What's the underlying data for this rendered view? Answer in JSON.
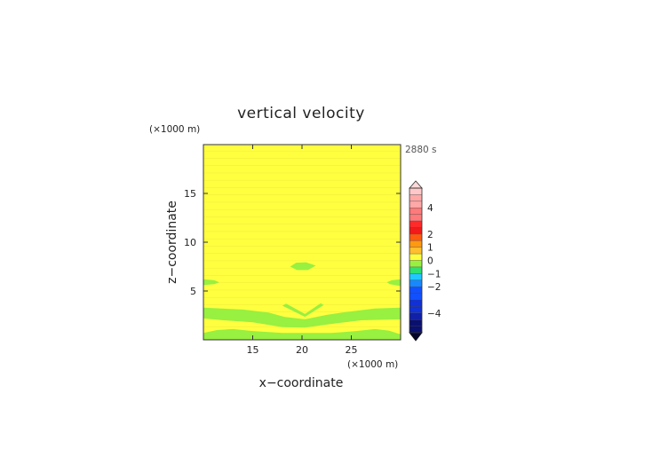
{
  "chart_data": {
    "type": "heatmap",
    "title": "vertical velocity",
    "time_label": "2880 s",
    "xlabel": "x−coordinate",
    "ylabel": "z−coordinate",
    "x_unit": "(×1000 m)",
    "y_unit": "(×1000 m)",
    "xlim": [
      10,
      30
    ],
    "ylim": [
      0,
      20
    ],
    "x_ticks": [
      15,
      20,
      25
    ],
    "y_ticks": [
      5,
      10,
      15
    ],
    "x_tick_labels": [
      "15",
      "20",
      "25"
    ],
    "y_tick_labels": [
      "5",
      "10",
      "15"
    ],
    "background_level": "0 to 0.5 (yellow)",
    "features": [
      {
        "name": "upper-patch",
        "level": "-0.5 to 0",
        "x_range": [
          18.8,
          21.4
        ],
        "z": 7.5
      },
      {
        "name": "left-edge-lobe",
        "level": "-0.5 to 0",
        "x_range": [
          10,
          11.6
        ],
        "z": 5.9
      },
      {
        "name": "right-edge-lobe",
        "level": "-0.5 to 0",
        "x_range": [
          28.6,
          30
        ],
        "z": 5.9
      },
      {
        "name": "central-chevron",
        "level": "-0.5 to 0",
        "x_range": [
          18,
          22.2
        ],
        "z": 3.3
      },
      {
        "name": "low-band",
        "level": "-0.5 to 0",
        "z_range": [
          2.0,
          3.3
        ]
      },
      {
        "name": "near-surface-band",
        "level": "-0.5 to 0",
        "z_range": [
          0,
          1.0
        ]
      }
    ],
    "colorbar": {
      "tick_labels": [
        "4",
        "2",
        "1",
        "0",
        "−1",
        "−2",
        "−4"
      ],
      "levels": [
        {
          "from": 5,
          "to": 5.5,
          "color": "#ffc8c8"
        },
        {
          "from": 4,
          "to": 5,
          "color": "#ffa8a8"
        },
        {
          "from": 3,
          "to": 4,
          "color": "#ff7a7a"
        },
        {
          "from": 2.5,
          "to": 3,
          "color": "#ff2a2a"
        },
        {
          "from": 2,
          "to": 2.5,
          "color": "#f21a1a"
        },
        {
          "from": 1.5,
          "to": 2,
          "color": "#ff5a10"
        },
        {
          "from": 1,
          "to": 1.5,
          "color": "#ff9a10"
        },
        {
          "from": 0.5,
          "to": 1,
          "color": "#ffbf30"
        },
        {
          "from": 0,
          "to": 0.5,
          "color": "#ffff40"
        },
        {
          "from": -0.5,
          "to": 0,
          "color": "#98f040"
        },
        {
          "from": -1,
          "to": -0.5,
          "color": "#30e070"
        },
        {
          "from": -1.5,
          "to": -1,
          "color": "#20c8ff"
        },
        {
          "from": -2,
          "to": -1.5,
          "color": "#1888ff"
        },
        {
          "from": -3,
          "to": -2,
          "color": "#1050ff"
        },
        {
          "from": -4,
          "to": -3,
          "color": "#1030d8"
        },
        {
          "from": -4.5,
          "to": -4,
          "color": "#1020a8"
        },
        {
          "from": -5.5,
          "to": -4.5,
          "color": "#0a1070"
        }
      ],
      "under_color": "#05052a",
      "over_color": "#ffd8d8"
    },
    "grid": false
  }
}
